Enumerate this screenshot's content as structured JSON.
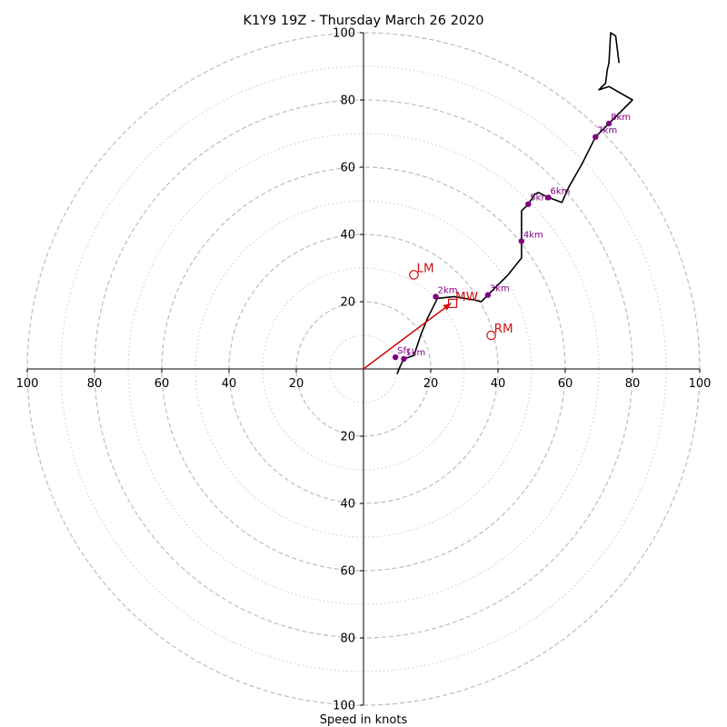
{
  "chart_data": {
    "type": "scatter",
    "subtype": "hodograph",
    "title": "K1Y9 19Z - Thursday March 26 2020",
    "xlabel": "Speed in knots",
    "ylabel": "",
    "xlim": [
      -100,
      100
    ],
    "ylim": [
      -100,
      100
    ],
    "rings_major": [
      20,
      40,
      60,
      80,
      100
    ],
    "rings_minor": [
      10,
      30,
      50,
      70,
      90
    ],
    "x_ticks": [
      {
        "value": -100,
        "label": "100"
      },
      {
        "value": -80,
        "label": "80"
      },
      {
        "value": -60,
        "label": "60"
      },
      {
        "value": -40,
        "label": "40"
      },
      {
        "value": -20,
        "label": "20"
      },
      {
        "value": 20,
        "label": "20"
      },
      {
        "value": 40,
        "label": "40"
      },
      {
        "value": 60,
        "label": "60"
      },
      {
        "value": 80,
        "label": "80"
      },
      {
        "value": 100,
        "label": "100"
      }
    ],
    "y_ticks": [
      {
        "value": 100,
        "label": "100"
      },
      {
        "value": 80,
        "label": "80"
      },
      {
        "value": 60,
        "label": "60"
      },
      {
        "value": 40,
        "label": "40"
      },
      {
        "value": 20,
        "label": "20"
      },
      {
        "value": -20,
        "label": "20"
      },
      {
        "value": -40,
        "label": "40"
      },
      {
        "value": -60,
        "label": "60"
      },
      {
        "value": -80,
        "label": "80"
      },
      {
        "value": -100,
        "label": "100"
      }
    ],
    "trace": {
      "color": "#000000",
      "u": [
        10,
        11,
        12,
        15,
        17,
        19,
        21,
        22,
        27,
        33,
        35,
        37,
        40,
        43,
        47,
        47,
        47,
        47,
        48,
        49,
        51,
        52,
        55,
        59,
        61,
        65,
        69,
        73,
        80,
        73,
        70,
        72,
        72.5,
        73,
        73.5,
        75,
        76
      ],
      "v": [
        -1.5,
        1,
        3,
        4,
        10,
        15,
        19,
        21,
        21.5,
        20.5,
        20,
        22,
        25,
        28,
        33,
        38,
        45,
        47,
        48,
        49,
        52,
        52.5,
        51,
        49.5,
        54,
        61,
        69,
        73,
        80,
        84,
        83,
        85,
        89,
        91,
        100,
        99,
        91
      ]
    },
    "height_markers": {
      "color": "#800080",
      "points": [
        {
          "label": "Sfc",
          "u": 9.5,
          "v": 3.5
        },
        {
          "label": "1km",
          "u": 12,
          "v": 3
        },
        {
          "label": "2km",
          "u": 21.5,
          "v": 21.5
        },
        {
          "label": "3km",
          "u": 37,
          "v": 22
        },
        {
          "label": "4km",
          "u": 47,
          "v": 38
        },
        {
          "label": "5km",
          "u": 49,
          "v": 49
        },
        {
          "label": "6km",
          "u": 55,
          "v": 51
        },
        {
          "label": "7km",
          "u": 69,
          "v": 69
        },
        {
          "label": "8km",
          "u": 73,
          "v": 73
        }
      ]
    },
    "storm_motions": {
      "color": "#d01010",
      "points": [
        {
          "label": "LM",
          "u": 15,
          "v": 28,
          "marker": "circle"
        },
        {
          "label": "MW",
          "u": 26.5,
          "v": 19.5,
          "marker": "square"
        },
        {
          "label": "RM",
          "u": 38,
          "v": 10,
          "marker": "circle"
        }
      ],
      "arrow": {
        "from": [
          0,
          0
        ],
        "to": [
          26,
          19.5
        ]
      }
    }
  }
}
